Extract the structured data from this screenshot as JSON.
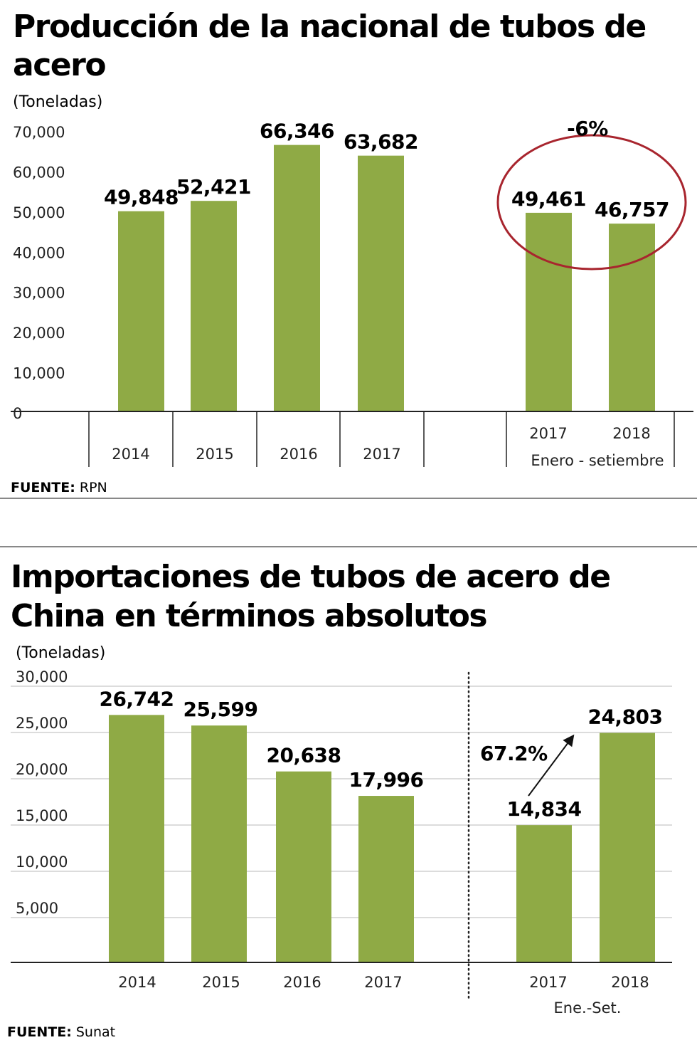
{
  "chart_data": [
    {
      "type": "bar",
      "title": "Producción de la nacional de tubos de acero",
      "ylabel": "(Toneladas)",
      "categories": [
        "2014",
        "2015",
        "2016",
        "2017",
        "2017",
        "2018"
      ],
      "values": [
        49848,
        52421,
        66346,
        63682,
        49461,
        46757
      ],
      "value_labels": [
        "49,848",
        "52,421",
        "66,346",
        "63,682",
        "49,461",
        "46,757"
      ],
      "group_label": "Enero - setiembre",
      "annotation": "-6%",
      "yticks": [
        "0",
        "10,000",
        "20,000",
        "30,000",
        "40,000",
        "50,000",
        "60,000",
        "70,000"
      ],
      "ylim": [
        0,
        70000
      ],
      "grid": false,
      "source_label": "FUENTE:",
      "source": "RPN"
    },
    {
      "type": "bar",
      "title": "Importaciones de tubos de acero de China en términos absolutos",
      "ylabel": "(Toneladas)",
      "categories": [
        "2014",
        "2015",
        "2016",
        "2017",
        "2017",
        "2018"
      ],
      "values": [
        26742,
        25599,
        20638,
        17996,
        14834,
        24803
      ],
      "value_labels": [
        "26,742",
        "25,599",
        "20,638",
        "17,996",
        "14,834",
        "24,803"
      ],
      "group_label": "Ene.-Set.",
      "annotation": "67.2%",
      "yticks": [
        "5,000",
        "10,000",
        "15,000",
        "20,000",
        "25,000",
        "30,000"
      ],
      "ylim": [
        0,
        30000
      ],
      "grid": true,
      "source_label": "FUENTE:",
      "source": "Sunat"
    }
  ],
  "colors": {
    "bar": "#8faa45",
    "circle": "#a8252e",
    "grid": "#d0d0d0"
  }
}
